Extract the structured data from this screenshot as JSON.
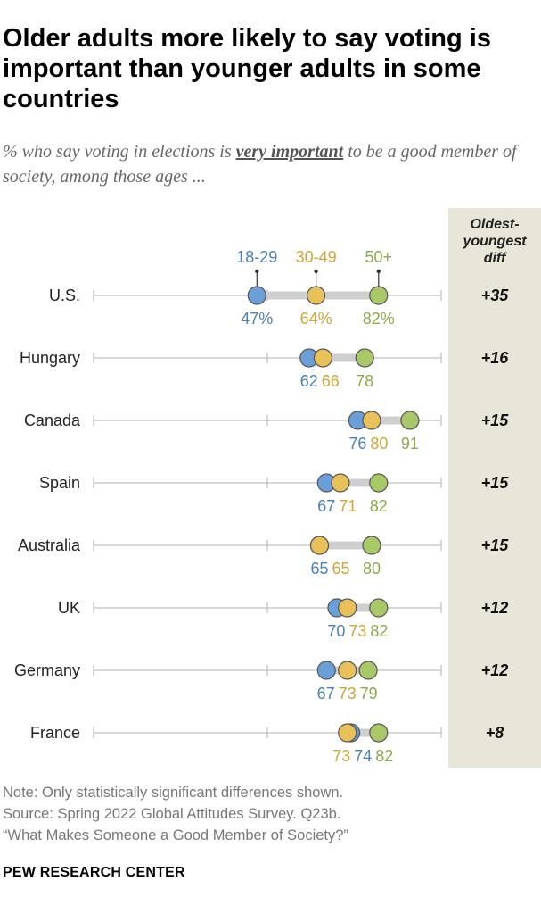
{
  "title": "Older adults more likely to say voting is important than younger adults in some countries",
  "subtitle": {
    "before": "% who say voting in elections is ",
    "emphasis": "very important",
    "after": " to be a good member of society, among those ages ..."
  },
  "diff_header": [
    "Oldest-",
    "youngest",
    "diff"
  ],
  "note_lines": [
    "Note: Only statistically significant differences shown.",
    "Source: Spring 2022 Global Attitudes Survey. Q23b.",
    "“What Makes Someone a Good Member of Society?”"
  ],
  "source_brand": "PEW RESEARCH CENTER",
  "colors": {
    "18-29": "#6a9fd8",
    "30-49": "#e8c15a",
    "50+": "#a9c868",
    "18-29_text": "#4a7fb8",
    "30-49_text": "#d0a53a",
    "50+_text": "#8aab4a",
    "range_bar": "#cfcfcf",
    "axis": "#b0b0b0",
    "diff_panel": "#e7e6d8"
  },
  "chart_data": {
    "type": "dot",
    "xlim": [
      0,
      100
    ],
    "legend_labels": [
      "18-29",
      "30-49",
      "50+"
    ],
    "series": [
      {
        "name": "18-29",
        "values": [
          47,
          62,
          76,
          67,
          65,
          70,
          67,
          74
        ]
      },
      {
        "name": "30-49",
        "values": [
          64,
          66,
          80,
          71,
          65,
          73,
          73,
          73
        ]
      },
      {
        "name": "50+",
        "values": [
          82,
          78,
          91,
          82,
          80,
          82,
          79,
          82
        ]
      }
    ],
    "categories": [
      "U.S.",
      "Hungary",
      "Canada",
      "Spain",
      "Australia",
      "UK",
      "Germany",
      "France"
    ],
    "first_row_suffix": "%",
    "diff": [
      "+35",
      "+16",
      "+15",
      "+15",
      "+15",
      "+12",
      "+12",
      "+8"
    ]
  }
}
